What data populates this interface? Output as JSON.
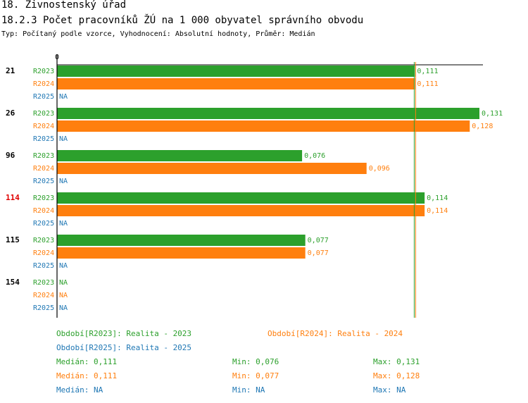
{
  "header": {
    "title1": "18. Živnostenský úřad",
    "title2": "18.2.3 Počet pracovníků ŽÚ na 1 000 obyvatel správního obvodu",
    "subtitle": "Typ: Počítaný podle vzorce, Vyhodnocení: Absolutní hodnoty, Průměr: Medián"
  },
  "colors": {
    "R2023": "#2ca02c",
    "R2024": "#ff7f0e",
    "R2025": "#1f77b4",
    "highlight_group": "#e00000"
  },
  "chart_data": {
    "type": "bar",
    "orientation": "horizontal",
    "axis_zero_label": "0",
    "na_label": "NA",
    "grid": false,
    "categories": [
      "21",
      "26",
      "96",
      "114",
      "115",
      "154"
    ],
    "highlighted_category": "114",
    "series": [
      {
        "name": "R2023",
        "values": [
          0.111,
          0.131,
          0.076,
          0.114,
          0.077,
          null
        ],
        "labels": [
          "0,111",
          "0,131",
          "0,076",
          "0,114",
          "0,077",
          "NA"
        ]
      },
      {
        "name": "R2024",
        "values": [
          0.111,
          0.128,
          0.096,
          0.114,
          0.077,
          null
        ],
        "labels": [
          "0,111",
          "0,128",
          "0,096",
          "0,114",
          "0,077",
          "NA"
        ]
      },
      {
        "name": "R2025",
        "values": [
          null,
          null,
          null,
          null,
          null,
          null
        ],
        "labels": [
          "NA",
          "NA",
          "NA",
          "NA",
          "NA",
          "NA"
        ]
      }
    ],
    "median_lines": {
      "R2023": 0.111,
      "R2024": 0.111
    },
    "xlim": [
      0,
      0.131
    ]
  },
  "legend": {
    "periods": [
      {
        "series": "R2023",
        "text": "Období[R2023]: Realita - 2023"
      },
      {
        "series": "R2024",
        "text": "Období[R2024]: Realita - 2024"
      },
      {
        "series": "R2025",
        "text": "Období[R2025]: Realita - 2025"
      }
    ],
    "stats": [
      {
        "series": "R2023",
        "median": "Medián: 0,111",
        "min": "Min: 0,076",
        "max": "Max: 0,131"
      },
      {
        "series": "R2024",
        "median": "Medián: 0,111",
        "min": "Min: 0,077",
        "max": "Max: 0,128"
      },
      {
        "series": "R2025",
        "median": "Medián: NA",
        "min": "Min: NA",
        "max": "Max: NA"
      }
    ]
  }
}
